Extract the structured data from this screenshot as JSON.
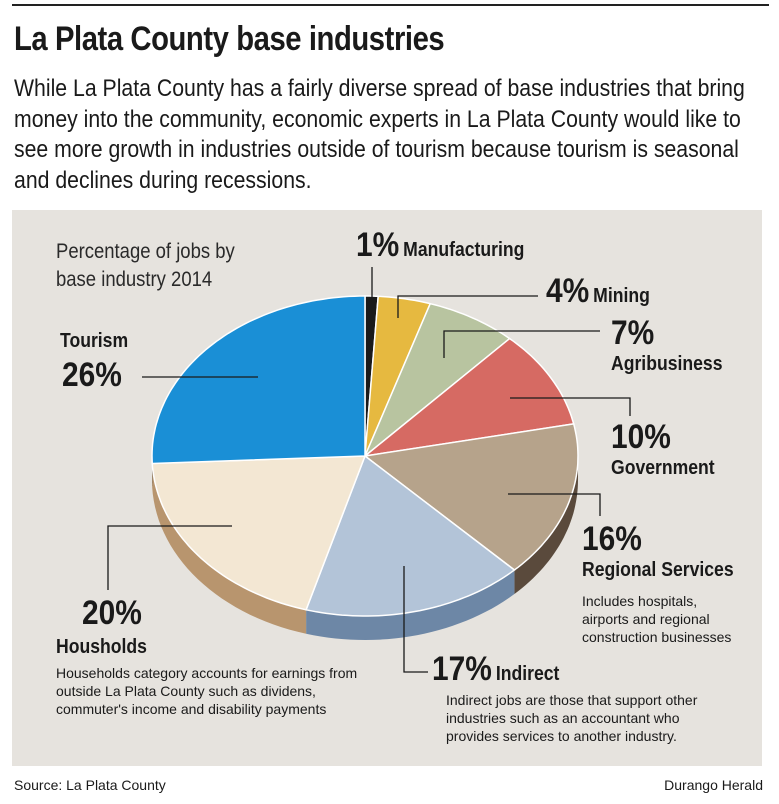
{
  "header": {
    "title": "La Plata County base industries",
    "intro": "While La Plata County has a fairly diverse spread of base industries that bring money into the community, economic experts in La Plata County would like to see more growth in industries outside of tourism because tourism is seasonal and declines during recessions."
  },
  "chart_data": {
    "type": "pie",
    "title": "Percentage of jobs by base industry 2014",
    "labels": [
      "Manufacturing",
      "Mining",
      "Agribusiness",
      "Government",
      "Regional Services",
      "Indirect",
      "Housholds",
      "Tourism"
    ],
    "values": [
      1,
      4,
      7,
      10,
      16,
      17,
      20,
      26
    ],
    "value_labels": [
      "1%",
      "4%",
      "7%",
      "10%",
      "16%",
      "17%",
      "20%",
      "26%"
    ],
    "colors": [
      "#1a1a1a",
      "#e6b940",
      "#b8c4a0",
      "#d66a63",
      "#b6a38b",
      "#b3c4d8",
      "#f3e7d3",
      "#1a8fd6"
    ],
    "side_colors": [
      "#111111",
      "#a8852c",
      "#8a9474",
      "#9c4a46",
      "#5a4a3c",
      "#6d87a6",
      "#b8956e",
      "#1a1a1a"
    ],
    "notes": {
      "Regional Services": "Includes hospitals, airports and regional construction businesses",
      "Indirect": "Indirect jobs are those that support other industries such as an accountant who provides services to another industry.",
      "Housholds": "Households category accounts for earnings from outside La Plata County such as dividens, commuter's income and disability payments"
    }
  },
  "footer": {
    "source": "Source: La Plata County",
    "credit": "Durango Herald"
  }
}
